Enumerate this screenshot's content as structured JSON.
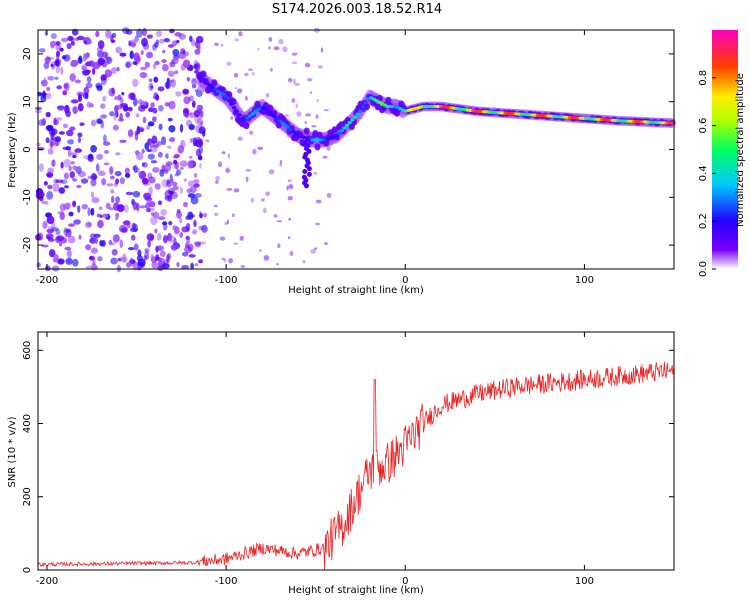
{
  "title": "S174.2026.003.18.52.R14",
  "colors": {
    "snr_line": "#ee2222",
    "ridge_low": "#8800ff",
    "ridge_high": "#ff2244"
  },
  "chart_data": [
    {
      "type": "heatmap",
      "xlabel": "Height of straight line (km)",
      "ylabel": "Frequency (Hz)",
      "xlim": [
        -205,
        150
      ],
      "ylim": [
        -25,
        25
      ],
      "xticks": [
        -200,
        -100,
        0,
        100
      ],
      "xtick_labels": [
        "-200",
        "-100",
        "0",
        "100"
      ],
      "yticks": [
        -20,
        -10,
        0,
        10,
        20
      ],
      "ytick_labels": [
        "-20",
        "-10",
        "0",
        "10",
        "20"
      ],
      "colorbar": {
        "label": "Normalized spectral amplitude",
        "range": [
          0,
          1
        ],
        "ticks": [
          0.0,
          0.2,
          0.4,
          0.6,
          0.8
        ],
        "tick_labels": [
          "0.0",
          "0.2",
          "0.4",
          "0.6",
          "0.8"
        ]
      },
      "ridge": {
        "height_km": [
          -115,
          -100,
          -90,
          -80,
          -70,
          -60,
          -52,
          -45,
          -38,
          -30,
          -25,
          -20,
          -15,
          -10,
          -5,
          0,
          10,
          20,
          40,
          60,
          80,
          100,
          120,
          150
        ],
        "frequency_hz": [
          15,
          11,
          6,
          9,
          6,
          3,
          2,
          2,
          3,
          6,
          8,
          11,
          10,
          9,
          9,
          8,
          9,
          9,
          8,
          7.5,
          7,
          6.5,
          6,
          5.5
        ],
        "amplitude": [
          0.25,
          0.3,
          0.3,
          0.35,
          0.3,
          0.3,
          0.35,
          0.35,
          0.4,
          0.45,
          0.5,
          0.55,
          0.55,
          0.55,
          0.6,
          0.65,
          0.85,
          0.9,
          0.9,
          0.9,
          0.9,
          0.9,
          0.9,
          0.85
        ]
      },
      "noise_region_km": [
        -205,
        -120
      ]
    },
    {
      "type": "line",
      "xlabel": "Height of straight line (km)",
      "ylabel": "SNR (10 * v/v)",
      "xlim": [
        -205,
        150
      ],
      "ylim": [
        0,
        650
      ],
      "xticks": [
        -200,
        -100,
        0,
        100
      ],
      "xtick_labels": [
        "-200",
        "-100",
        "0",
        "100"
      ],
      "yticks": [
        0,
        200,
        400,
        600
      ],
      "ytick_labels": [
        "0",
        "200",
        "400",
        "600"
      ],
      "trend": {
        "height_km": [
          -205,
          -120,
          -100,
          -80,
          -60,
          -45,
          -35,
          -25,
          -20,
          -10,
          0,
          10,
          20,
          40,
          60,
          80,
          100,
          120,
          150
        ],
        "snr": [
          15,
          20,
          30,
          60,
          45,
          60,
          120,
          220,
          270,
          290,
          340,
          400,
          450,
          480,
          500,
          510,
          520,
          530,
          545
        ]
      },
      "spike": {
        "height_km": -17,
        "snr": 520
      }
    }
  ]
}
